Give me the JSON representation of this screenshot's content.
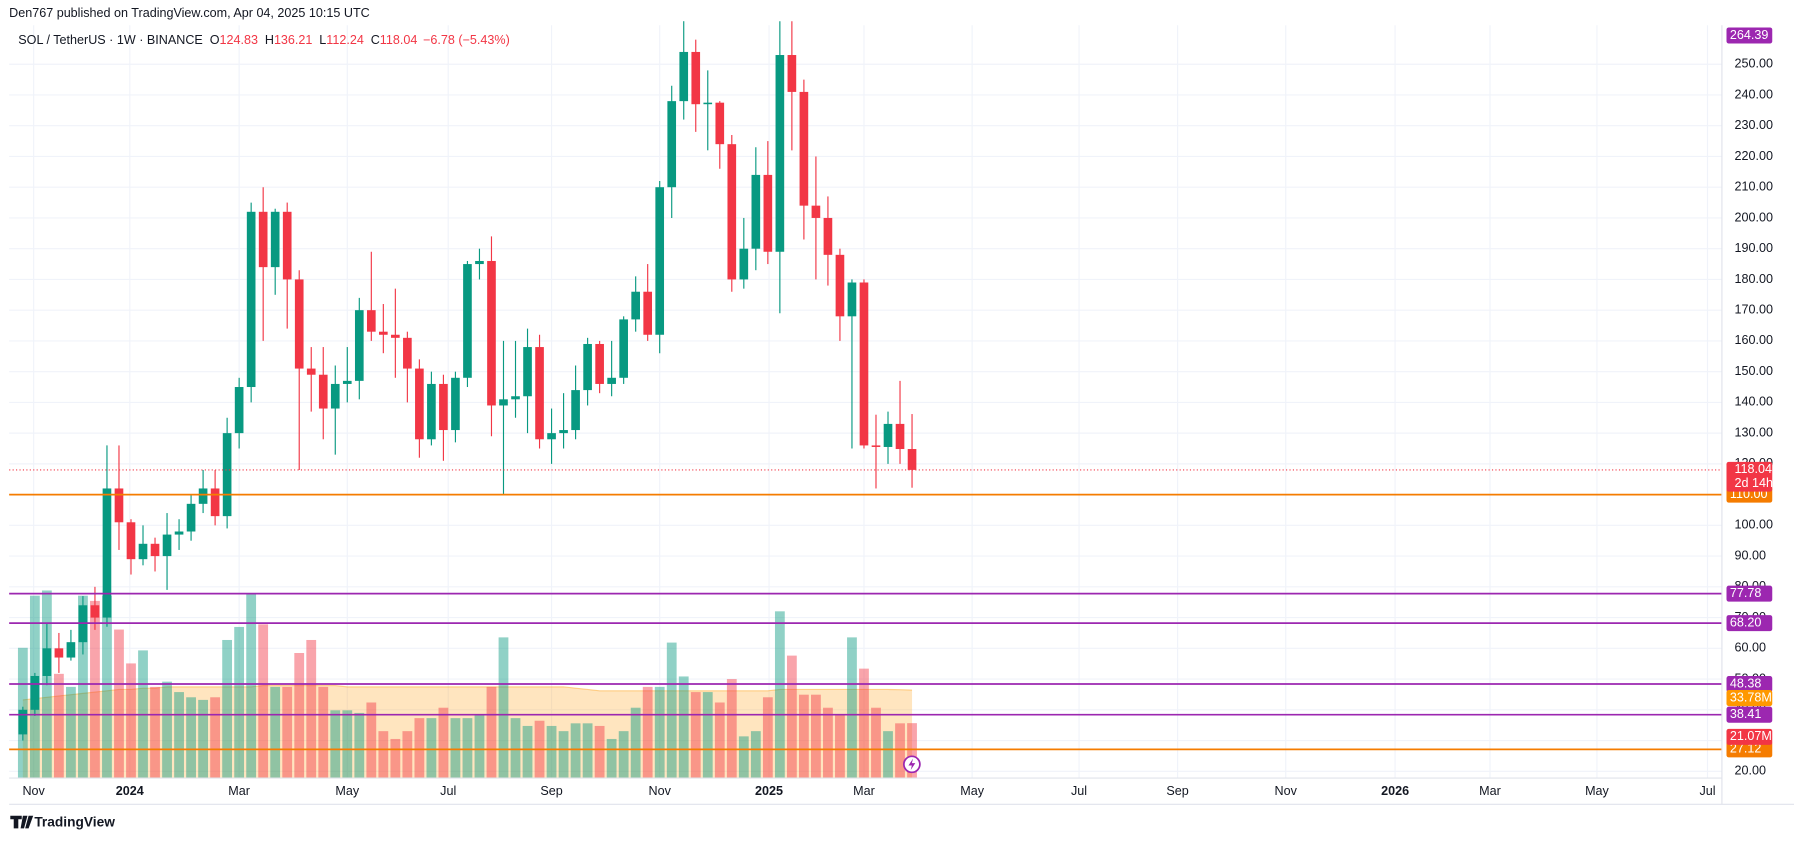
{
  "header": {
    "publisher": "Den767 published on TradingView.com, Apr 04, 2025 10:15 UTC",
    "brand": "TradingView"
  },
  "chart_data": {
    "type": "candlestick",
    "symbol": "SOL / TetherUS · 1W · BINANCE",
    "ohlc_labels": [
      "O",
      "H",
      "L",
      "C"
    ],
    "change": "−6.78 (−5.43%)",
    "up_color": "#089981",
    "down_color": "#f23645",
    "open": [
      32,
      40,
      51,
      60,
      57,
      62,
      74,
      70,
      112,
      101,
      89,
      94,
      90,
      97,
      98,
      107,
      112,
      103,
      130,
      145,
      202,
      184,
      202,
      180,
      151,
      149,
      138,
      146,
      147,
      170,
      163,
      162,
      161,
      151,
      128,
      146,
      131,
      148,
      185,
      186,
      139,
      141,
      142,
      158,
      128,
      130,
      131,
      144,
      159,
      146,
      148,
      167,
      176,
      162,
      210,
      238,
      254,
      237,
      237.5,
      224,
      180,
      190,
      214,
      189,
      253,
      241,
      204,
      200,
      188,
      168,
      179,
      126,
      125.5,
      133,
      124.83
    ],
    "high": [
      41,
      52,
      68,
      65,
      66,
      77,
      80,
      126,
      126,
      102,
      100,
      96,
      104,
      102,
      110,
      118,
      118,
      135,
      148,
      205,
      210,
      203,
      205,
      183,
      158,
      158,
      152,
      158,
      174,
      189,
      172,
      177,
      163,
      154,
      150,
      149,
      150,
      186,
      190,
      194,
      160,
      160,
      164,
      162,
      138,
      143,
      152,
      161,
      160,
      160,
      168,
      181,
      185,
      212,
      243,
      264,
      258,
      248,
      238,
      227,
      200,
      223,
      225,
      264,
      264,
      245,
      220,
      207,
      190,
      180,
      180,
      136,
      137,
      147,
      136.21
    ],
    "low": [
      30,
      38,
      48,
      52,
      56,
      58,
      66,
      67,
      92,
      84,
      87,
      85,
      79,
      92,
      95,
      104,
      100,
      99,
      125,
      140,
      160,
      175,
      164,
      118,
      137,
      128,
      123,
      140,
      141,
      160,
      156,
      148,
      140,
      122,
      126,
      121,
      127,
      145,
      180,
      129,
      110,
      135,
      130,
      125,
      120,
      125,
      128,
      139,
      143,
      142,
      146,
      163,
      160,
      156,
      200,
      232,
      228,
      222,
      216,
      176,
      177,
      183,
      185,
      169,
      222,
      193,
      180,
      178,
      160,
      125,
      125,
      112,
      120,
      120,
      112.24
    ],
    "close": [
      40,
      51,
      60,
      57,
      62,
      74,
      70,
      112,
      101,
      89,
      94,
      90,
      97,
      98,
      107,
      112,
      103,
      130,
      145,
      202,
      184,
      202,
      180,
      151,
      149,
      138,
      146,
      147,
      170,
      163,
      162,
      161,
      151,
      128,
      146,
      131,
      148,
      185,
      186,
      139,
      141,
      142,
      158,
      128,
      130,
      131,
      144,
      159,
      146,
      148,
      167,
      176,
      162,
      210,
      238,
      254,
      237,
      237.5,
      224,
      180,
      190,
      214,
      189,
      253,
      241,
      204,
      200,
      188,
      168,
      179,
      126,
      125.5,
      133,
      124.83,
      118.04
    ],
    "volume": [
      50,
      70,
      72,
      40,
      35,
      70,
      68,
      70,
      57,
      44,
      49,
      35,
      37,
      33,
      31,
      30,
      31,
      53,
      58,
      71,
      59,
      35,
      35,
      48,
      53,
      35,
      26,
      26,
      25,
      29,
      18,
      15,
      18,
      23,
      23,
      27,
      23,
      23,
      24,
      35,
      54,
      23,
      20,
      22,
      20,
      18,
      21,
      21,
      20,
      15,
      18,
      27,
      35,
      35,
      52,
      39,
      33,
      33,
      29,
      38,
      16,
      18,
      31,
      64,
      47,
      32,
      32,
      27,
      24,
      54,
      42,
      27,
      18,
      21,
      21.07
    ],
    "volume_last_label": "21.07M",
    "volume_ma": [
      30,
      30.5,
      31,
      31.5,
      32,
      32.5,
      33,
      33.5,
      34,
      34,
      34.5,
      34.5,
      35,
      35,
      35,
      35,
      35,
      35,
      35,
      35,
      35.5,
      35.5,
      35.5,
      35.5,
      35.5,
      35.5,
      35.5,
      35,
      35,
      35,
      35,
      35,
      35,
      35,
      35,
      35,
      35,
      35,
      35,
      35,
      35,
      35,
      35,
      35,
      35,
      35,
      34.5,
      34,
      33.5,
      33.5,
      33.5,
      33.5,
      33.5,
      33.5,
      33.5,
      33.5,
      33.5,
      33.5,
      33.5,
      33.5,
      33.5,
      33.5,
      33.5,
      34,
      34,
      34,
      34,
      34,
      34,
      34,
      34,
      34,
      34,
      33.9,
      33.78
    ],
    "volume_ma_label": "33.78M",
    "volume_ma_color": "#ff9800",
    "volume_ylim": [
      0,
      289
    ],
    "ylim": [
      17.8,
      262.7
    ],
    "yticks": [
      {
        "value": 20,
        "label": "20.00"
      },
      {
        "value": 30,
        "label": "30.00"
      },
      {
        "value": 40,
        "label": "40.00"
      },
      {
        "value": 50,
        "label": "50.00"
      },
      {
        "value": 60,
        "label": "60.00"
      },
      {
        "value": 70,
        "label": "70.00"
      },
      {
        "value": 80,
        "label": "80.00"
      },
      {
        "value": 90,
        "label": "90.00"
      },
      {
        "value": 100,
        "label": "100.00"
      },
      {
        "value": 110,
        "label": "110.00"
      },
      {
        "value": 120,
        "label": "120.00"
      },
      {
        "value": 130,
        "label": "130.00"
      },
      {
        "value": 140,
        "label": "140.00"
      },
      {
        "value": 150,
        "label": "150.00"
      },
      {
        "value": 160,
        "label": "160.00"
      },
      {
        "value": 170,
        "label": "170.00"
      },
      {
        "value": 180,
        "label": "180.00"
      },
      {
        "value": 190,
        "label": "190.00"
      },
      {
        "value": 200,
        "label": "200.00"
      },
      {
        "value": 210,
        "label": "210.00"
      },
      {
        "value": 220,
        "label": "220.00"
      },
      {
        "value": 230,
        "label": "230.00"
      },
      {
        "value": 240,
        "label": "240.00"
      },
      {
        "value": 250,
        "label": "250.00"
      }
    ],
    "xlim": [
      -1.14,
      141.4
    ],
    "xticks": [
      {
        "value": 0.9,
        "label": "Nov"
      },
      {
        "value": 8.9,
        "label": "2024"
      },
      {
        "value": 18,
        "label": "Mar"
      },
      {
        "value": 27,
        "label": "May"
      },
      {
        "value": 35.4,
        "label": "Jul"
      },
      {
        "value": 44,
        "label": "Sep"
      },
      {
        "value": 53,
        "label": "Nov"
      },
      {
        "value": 62.1,
        "label": "2025"
      },
      {
        "value": 70,
        "label": "Mar"
      },
      {
        "value": 79,
        "label": "May"
      },
      {
        "value": 87.9,
        "label": "Jul"
      },
      {
        "value": 96.1,
        "label": "Sep"
      },
      {
        "value": 105.1,
        "label": "Nov"
      },
      {
        "value": 114.2,
        "label": "2026"
      },
      {
        "value": 122.1,
        "label": "Mar"
      },
      {
        "value": 131,
        "label": "May"
      },
      {
        "value": 140.2,
        "label": "Jul"
      }
    ],
    "grid": true,
    "levels": [
      {
        "value": 264.39,
        "label": "264.39",
        "color": "#9c27b0"
      },
      {
        "value": 110,
        "label": "110.00",
        "color": "#f57c00"
      },
      {
        "value": 77.78,
        "label": "77.78",
        "color": "#9c27b0"
      },
      {
        "value": 68.2,
        "label": "68.20",
        "color": "#9c27b0"
      },
      {
        "value": 48.38,
        "label": "48.38",
        "color": "#9c27b0"
      },
      {
        "value": 38.41,
        "label": "38.41",
        "color": "#9c27b0"
      },
      {
        "value": 27.12,
        "label": "27.12",
        "color": "#f57c00"
      }
    ],
    "last_price": {
      "value": 118.04,
      "label": "118.04",
      "countdown": "2d 14h"
    }
  }
}
